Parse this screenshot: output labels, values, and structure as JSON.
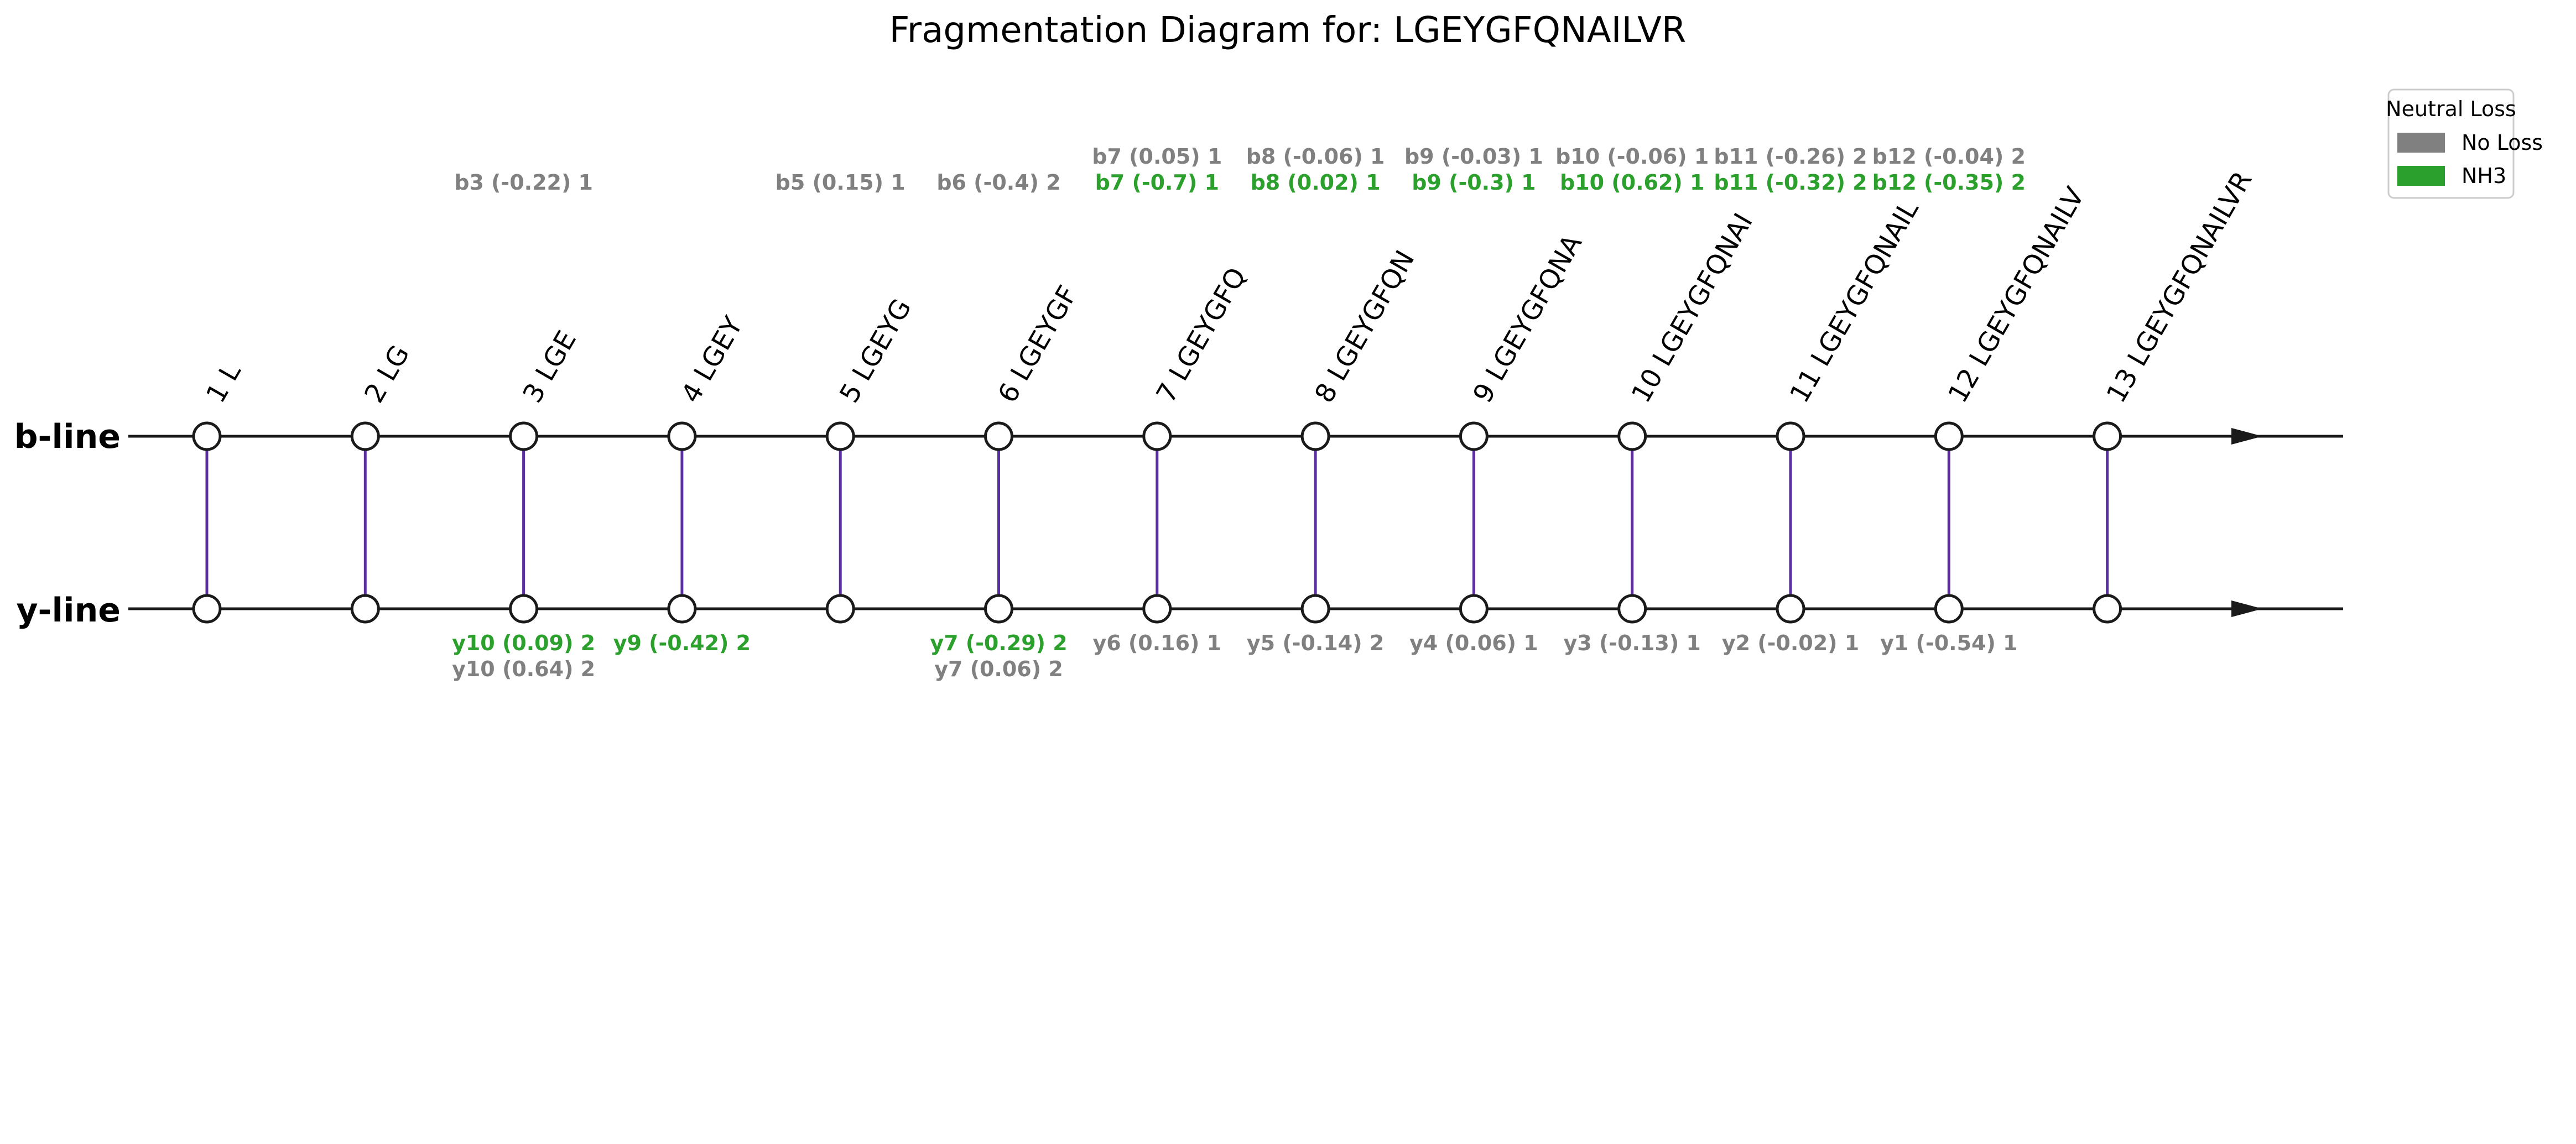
{
  "title": "Fragmentation Diagram for: LGEYGFQNAILVR",
  "lines": {
    "b_label": "b-line",
    "y_label": "y-line"
  },
  "colors": {
    "line": "#1a1a1a",
    "link": "#5b2fa0",
    "no_loss": "#808080",
    "nh3": "#2ca02c"
  },
  "legend": {
    "title": "Neutral Loss",
    "items": [
      {
        "label": "No Loss",
        "color": "#808080"
      },
      {
        "label": "NH3",
        "color": "#2ca02c"
      }
    ]
  },
  "positions": [
    "1 L",
    "2 LG",
    "3 LGE",
    "4 LGEY",
    "5 LGEYG",
    "6 LGEYGF",
    "7 LGEYGFQ",
    "8 LGEYGFQN",
    "9 LGEYGFQNA",
    "10 LGEYGFQNAI",
    "11 LGEYGFQNAIL",
    "12 LGEYGFQNAILV",
    "13 LGEYGFQNAILVR"
  ],
  "b_ions": [
    {
      "pos": 3,
      "row": 0,
      "text": "b3 (-0.22) 1",
      "loss": "none"
    },
    {
      "pos": 5,
      "row": 0,
      "text": "b5 (0.15) 1",
      "loss": "none"
    },
    {
      "pos": 6,
      "row": 0,
      "text": "b6 (-0.4) 2",
      "loss": "none"
    },
    {
      "pos": 7,
      "row": 1,
      "text": "b7 (0.05) 1",
      "loss": "none"
    },
    {
      "pos": 7,
      "row": 0,
      "text": "b7 (-0.7) 1",
      "loss": "nh3"
    },
    {
      "pos": 8,
      "row": 1,
      "text": "b8 (-0.06) 1",
      "loss": "none"
    },
    {
      "pos": 8,
      "row": 0,
      "text": "b8 (0.02) 1",
      "loss": "nh3"
    },
    {
      "pos": 9,
      "row": 1,
      "text": "b9 (-0.03) 1",
      "loss": "none"
    },
    {
      "pos": 9,
      "row": 0,
      "text": "b9 (-0.3) 1",
      "loss": "nh3"
    },
    {
      "pos": 10,
      "row": 1,
      "text": "b10 (-0.06) 1",
      "loss": "none"
    },
    {
      "pos": 10,
      "row": 0,
      "text": "b10 (0.62) 1",
      "loss": "nh3"
    },
    {
      "pos": 11,
      "row": 1,
      "text": "b11 (-0.26) 2",
      "loss": "none"
    },
    {
      "pos": 11,
      "row": 0,
      "text": "b11 (-0.32) 2",
      "loss": "nh3"
    },
    {
      "pos": 12,
      "row": 1,
      "text": "b12 (-0.04) 2",
      "loss": "none"
    },
    {
      "pos": 12,
      "row": 0,
      "text": "b12 (-0.35) 2",
      "loss": "nh3"
    }
  ],
  "y_ions": [
    {
      "pos": 3,
      "row": 0,
      "text": "y10 (0.09) 2",
      "loss": "nh3"
    },
    {
      "pos": 3,
      "row": 1,
      "text": "y10 (0.64) 2",
      "loss": "none"
    },
    {
      "pos": 4,
      "row": 0,
      "text": "y9 (-0.42) 2",
      "loss": "nh3"
    },
    {
      "pos": 6,
      "row": 0,
      "text": "y7 (-0.29) 2",
      "loss": "nh3"
    },
    {
      "pos": 6,
      "row": 1,
      "text": "y7 (0.06) 2",
      "loss": "none"
    },
    {
      "pos": 7,
      "row": 0,
      "text": "y6 (0.16) 1",
      "loss": "none"
    },
    {
      "pos": 8,
      "row": 0,
      "text": "y5 (-0.14) 2",
      "loss": "none"
    },
    {
      "pos": 9,
      "row": 0,
      "text": "y4 (0.06) 1",
      "loss": "none"
    },
    {
      "pos": 10,
      "row": 0,
      "text": "y3 (-0.13) 1",
      "loss": "none"
    },
    {
      "pos": 11,
      "row": 0,
      "text": "y2 (-0.02) 1",
      "loss": "none"
    },
    {
      "pos": 12,
      "row": 0,
      "text": "y1 (-0.54) 1",
      "loss": "none"
    }
  ]
}
